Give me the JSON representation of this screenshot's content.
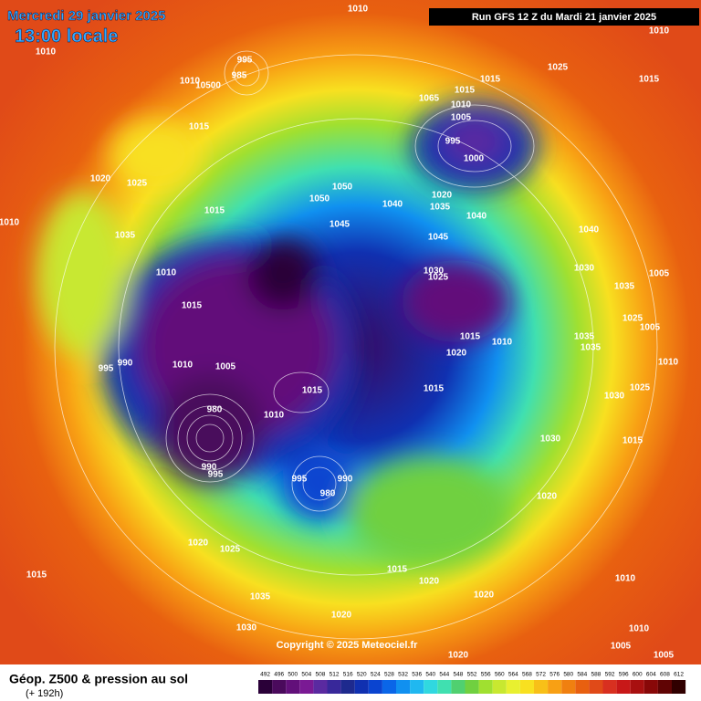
{
  "header": {
    "date": "Mercredi 29 janvier 2025",
    "time": "13:00 locale",
    "run": "Run GFS 12 Z du Mardi 21 janvier 2025"
  },
  "copyright": "Copyright © 2025 Meteociel.fr",
  "footer": {
    "title": "Géop. Z500 & pression au sol",
    "lead": "(+ 192h)"
  },
  "colorbar": {
    "levels": [
      492,
      496,
      500,
      504,
      508,
      512,
      516,
      520,
      524,
      528,
      532,
      536,
      540,
      544,
      548,
      552,
      556,
      560,
      564,
      568,
      572,
      576,
      580,
      584,
      588,
      592,
      596,
      600,
      604,
      608,
      612
    ],
    "colors": [
      "#2a0038",
      "#4a0a5c",
      "#62107a",
      "#7a1a94",
      "#5a2aa0",
      "#38289a",
      "#1e2a8e",
      "#1030b0",
      "#0a44d0",
      "#0a66e8",
      "#1090f0",
      "#20b8f0",
      "#30d8e0",
      "#40e0b0",
      "#50d070",
      "#70d040",
      "#a0e030",
      "#c8e830",
      "#e8f030",
      "#f8e020",
      "#f8c018",
      "#f8a014",
      "#f08010",
      "#e86010",
      "#e04a18",
      "#d83020",
      "#c81818",
      "#a81010",
      "#880808",
      "#600404",
      "#300000"
    ]
  },
  "isobar_labels": [
    1010,
    1010,
    995,
    985,
    1010,
    10500,
    1015,
    1015,
    1025,
    1010,
    1015,
    1065,
    1015,
    1010,
    1005,
    995,
    1000,
    1020,
    1025,
    1015,
    1035,
    1050,
    1050,
    1040,
    1020,
    1035,
    1040,
    1045,
    1045,
    1040,
    1030,
    1025,
    1030,
    1035,
    1010,
    1015,
    1010,
    1005,
    1025,
    1005,
    995,
    990,
    1010,
    1005,
    1020,
    1015,
    1010,
    1035,
    1035,
    1010,
    1015,
    1030,
    1025,
    980,
    995,
    990,
    995,
    990,
    980,
    1030,
    1015,
    1020,
    1020,
    1025,
    1015,
    1015,
    1020,
    1035,
    1020,
    1010,
    1020,
    1030,
    1010,
    1005,
    1020,
    1005,
    1015,
    1010
  ]
}
